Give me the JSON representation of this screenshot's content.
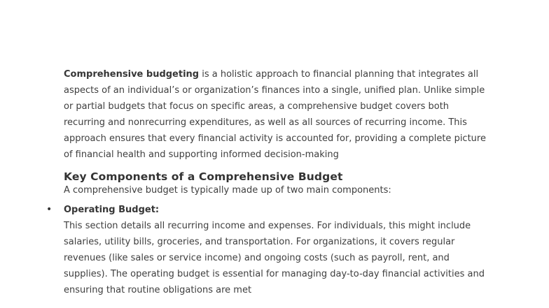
{
  "page": {
    "background": "#ffffff",
    "body_text_color": "#3e3e3e",
    "heading_color": "#333333"
  },
  "document": {
    "intro": {
      "lead": "Comprehensive budgeting",
      "text": " is a holistic approach to financial planning that integrates all aspects of an individual’s or organization’s finances into a single, unified plan. Unlike simple or partial budgets that focus on specific areas, a comprehensive budget covers both recurring and nonrecurring expenditures, as well as all sources of recurring income. This approach ensures that every financial activity is accounted for, providing a complete picture of financial health and supporting informed decision-making"
    },
    "section": {
      "heading": "Key Components of a Comprehensive Budget",
      "intro_line": "A comprehensive budget is typically made up of two main components:"
    },
    "list": {
      "bullet_glyph": "•",
      "items": [
        {
          "term": "Operating Budget:",
          "description": "This section details all recurring income and expenses. For individuals, this might include salaries, utility bills, groceries, and transportation. For organizations, it covers regular revenues (like sales or service income) and ongoing costs (such as payroll, rent, and supplies). The operating budget is essential for managing day-to-day financial activities and ensuring that routine obligations are met"
        }
      ]
    }
  }
}
